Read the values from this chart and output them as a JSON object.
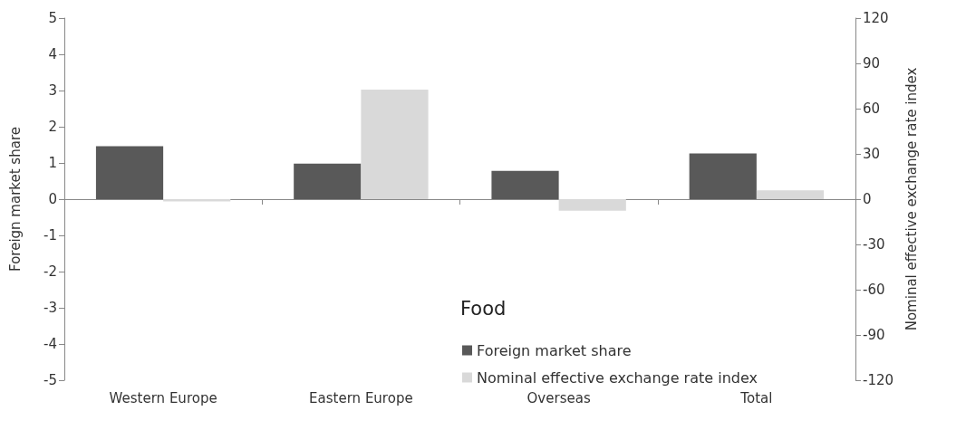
{
  "chart_data": {
    "type": "bar",
    "legend_title": "Food",
    "ylabel": "Foreign market share",
    "y2label": "Nominal effective exchange rate index",
    "categories": [
      "Western Europe",
      "Eastern Europe",
      "Overseas",
      "Total"
    ],
    "series": [
      {
        "name": "Foreign market share",
        "color": "#595959",
        "values": [
          1.46,
          0.98,
          0.78,
          1.26
        ]
      },
      {
        "name": "Nominal effective exchange rate index",
        "color": "#d9d9d9",
        "axis": "y2",
        "values": [
          -1.5,
          72.6,
          -7.6,
          5.8
        ]
      }
    ],
    "ylim": [
      -5,
      5
    ],
    "yticks": [
      -5,
      -4,
      -3,
      -2,
      -1,
      0,
      1,
      2,
      3,
      4,
      5
    ],
    "y2lim": [
      -120,
      120
    ],
    "y2ticks": [
      -120,
      -90,
      -60,
      -30,
      0,
      30,
      60,
      90,
      120
    ],
    "legend": "bottom"
  }
}
